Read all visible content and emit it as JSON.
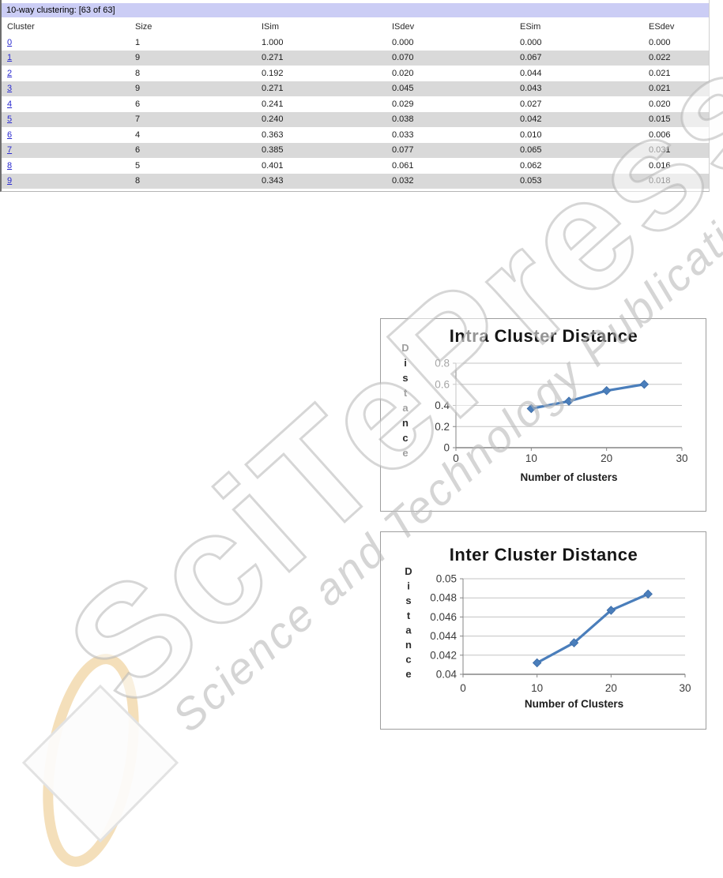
{
  "table": {
    "title": "10-way clustering: [63 of 63]",
    "columns": [
      "Cluster",
      "Size",
      "ISim",
      "ISdev",
      "ESim",
      "ESdev"
    ],
    "rows": [
      [
        "0",
        "1",
        "1.000",
        "0.000",
        "0.000",
        "0.000"
      ],
      [
        "1",
        "9",
        "0.271",
        "0.070",
        "0.067",
        "0.022"
      ],
      [
        "2",
        "8",
        "0.192",
        "0.020",
        "0.044",
        "0.021"
      ],
      [
        "3",
        "9",
        "0.271",
        "0.045",
        "0.043",
        "0.021"
      ],
      [
        "4",
        "6",
        "0.241",
        "0.029",
        "0.027",
        "0.020"
      ],
      [
        "5",
        "7",
        "0.240",
        "0.038",
        "0.042",
        "0.015"
      ],
      [
        "6",
        "4",
        "0.363",
        "0.033",
        "0.010",
        "0.006"
      ],
      [
        "7",
        "6",
        "0.385",
        "0.077",
        "0.065",
        "0.031"
      ],
      [
        "8",
        "5",
        "0.401",
        "0.061",
        "0.062",
        "0.016"
      ],
      [
        "9",
        "8",
        "0.343",
        "0.032",
        "0.053",
        "0.018"
      ]
    ],
    "header_bg": "#cbcdf5",
    "alt_row_bg": "#d9d9d9",
    "link_color": "#2929cf"
  },
  "chart_data": [
    {
      "type": "line",
      "title": "Intra Cluster Distance",
      "xlabel": "Number of clusters",
      "ylabel": "Distance",
      "x": [
        10,
        15,
        20,
        25
      ],
      "series": [
        {
          "name": "Intra cluster distance",
          "values": [
            0.37,
            0.44,
            0.54,
            0.6
          ]
        }
      ],
      "xticks": [
        0,
        10,
        20,
        30
      ],
      "yticks": [
        0,
        0.2,
        0.4,
        0.6,
        0.8
      ],
      "xlim": [
        0,
        30
      ],
      "ylim": [
        0,
        0.8
      ],
      "grid": true,
      "legend_position": "none",
      "marker": "diamond",
      "line_color": "#4a7ebb"
    },
    {
      "type": "line",
      "title": "Inter Cluster Distance",
      "xlabel": "Number of Clusters",
      "ylabel": "Distance",
      "x": [
        10,
        15,
        20,
        25
      ],
      "series": [
        {
          "name": "Inter cluster distance",
          "values": [
            0.0412,
            0.0433,
            0.0467,
            0.0484
          ]
        }
      ],
      "xticks": [
        0,
        10,
        20,
        30
      ],
      "yticks": [
        0.04,
        0.042,
        0.044,
        0.046,
        0.048,
        0.05
      ],
      "xlim": [
        0,
        30
      ],
      "ylim": [
        0.04,
        0.05
      ],
      "grid": true,
      "legend_position": "none",
      "marker": "diamond",
      "line_color": "#4a7ebb"
    }
  ],
  "watermark": {
    "brand": "SciTePress",
    "tagline": "Science and Technology Publications"
  }
}
